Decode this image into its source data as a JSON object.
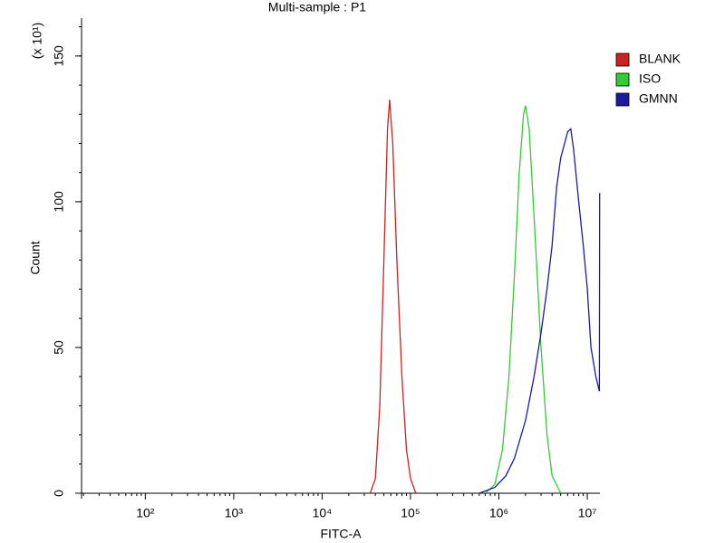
{
  "chart_data": {
    "type": "histogram-overlay",
    "title": "Multi-sample : P1",
    "x_label": "FITC-A",
    "y_label": "Count",
    "y_multiplier": "(x 10¹)",
    "log_x": true,
    "xlim": [
      19,
      13900000
    ],
    "xticks": [
      {
        "value": 100,
        "label": "10²"
      },
      {
        "value": 1000,
        "label": "10³"
      },
      {
        "value": 10000,
        "label": "10⁴"
      },
      {
        "value": 100000,
        "label": "10⁵"
      },
      {
        "value": 1000000,
        "label": "10⁶"
      },
      {
        "value": 10000000,
        "label": "10⁷"
      }
    ],
    "ylim": [
      0,
      163
    ],
    "yticks": [
      0,
      50,
      100,
      150
    ],
    "minor_ticks": true,
    "legend": "right",
    "series": [
      {
        "name": "BLANK",
        "color": "#cc2222",
        "x": [
          35000,
          40000,
          45000,
          50000,
          55000,
          58000,
          63000,
          70000,
          80000,
          90000,
          100000,
          115000
        ],
        "values": [
          0,
          5,
          30,
          80,
          125,
          135,
          120,
          80,
          40,
          15,
          5,
          0
        ]
      },
      {
        "name": "ISO",
        "color": "#33cc33",
        "x": [
          700000,
          900000,
          1100000,
          1300000,
          1500000,
          1700000,
          1900000,
          2000000,
          2200000,
          2500000,
          3000000,
          3500000,
          4000000,
          5000000
        ],
        "values": [
          0,
          3,
          15,
          40,
          75,
          110,
          130,
          133,
          125,
          95,
          50,
          20,
          6,
          0
        ]
      },
      {
        "name": "GMNN",
        "color": "#1a1aa0",
        "x": [
          600000,
          900000,
          1200000,
          1500000,
          2000000,
          2500000,
          3000000,
          3500000,
          4000000,
          4500000,
          5000000,
          6000000,
          6500000,
          7000000,
          8000000,
          9000000,
          10000000,
          11000000,
          12500000,
          13700000,
          13800000
        ],
        "values": [
          0,
          2,
          6,
          12,
          25,
          40,
          55,
          70,
          85,
          105,
          115,
          124,
          125,
          118,
          100,
          85,
          70,
          50,
          40,
          35,
          103
        ]
      }
    ]
  }
}
